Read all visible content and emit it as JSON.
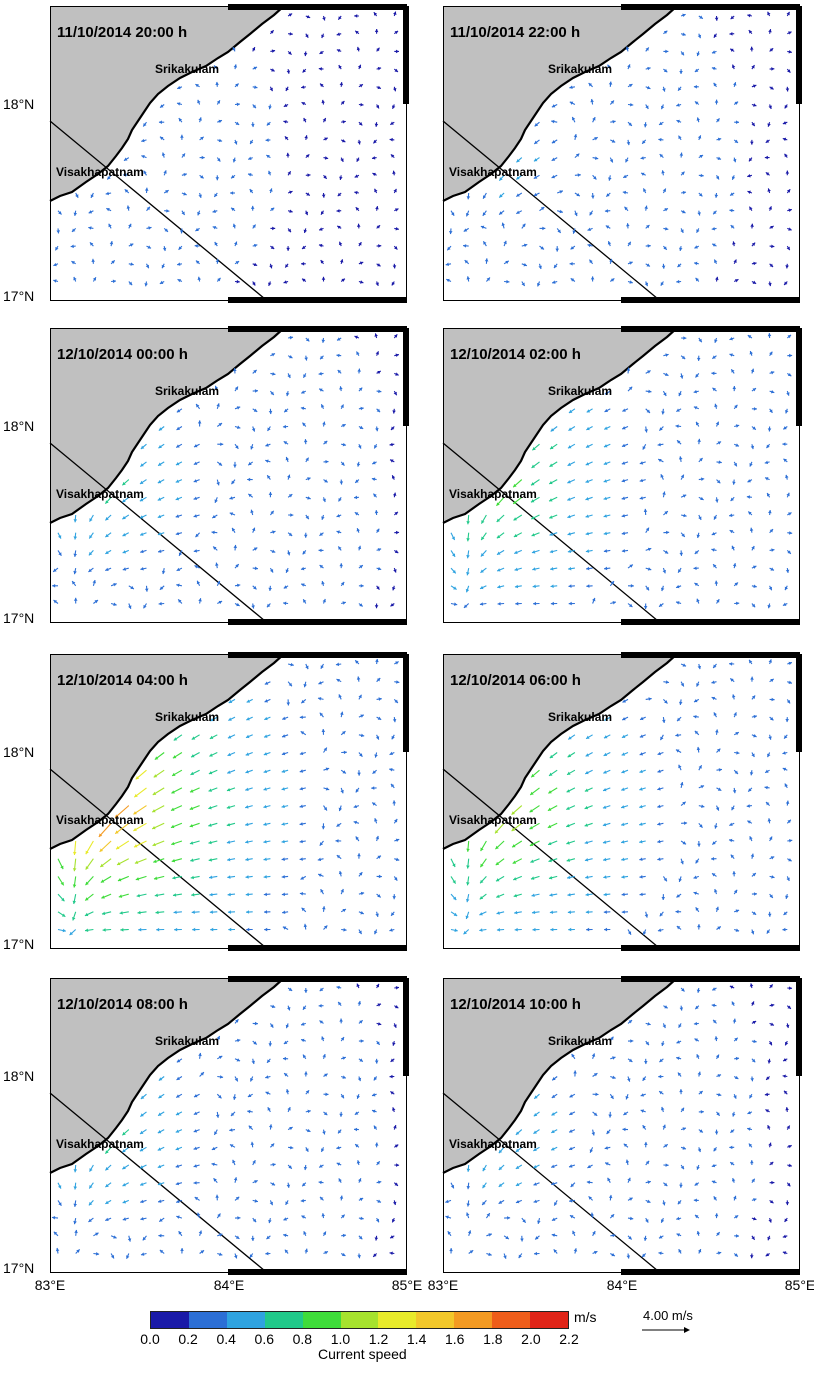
{
  "panels": [
    {
      "title": "11/10/2014 20:00 h",
      "time_index": 0
    },
    {
      "title": "11/10/2014 22:00 h",
      "time_index": 1
    },
    {
      "title": "12/10/2014 00:00 h",
      "time_index": 2
    },
    {
      "title": "12/10/2014 02:00 h",
      "time_index": 3
    },
    {
      "title": "12/10/2014 04:00 h",
      "time_index": 4
    },
    {
      "title": "12/10/2014 06:00 h",
      "time_index": 5
    },
    {
      "title": "12/10/2014 08:00 h",
      "time_index": 6
    },
    {
      "title": "12/10/2014 10:00 h",
      "time_index": 7
    }
  ],
  "places": {
    "north": "Srikakulam",
    "south": "Visakhapatnam"
  },
  "axes": {
    "lat_labels": [
      "18°N",
      "17°N"
    ],
    "lon_labels": [
      "83°E",
      "84°E",
      "85°E"
    ],
    "lon_range": [
      83,
      85
    ],
    "lat_range": [
      17,
      18.6
    ]
  },
  "colorbar": {
    "label": "Current speed",
    "units": "m/s",
    "ticks": [
      "0.0",
      "0.2",
      "0.4",
      "0.6",
      "0.8",
      "1.0",
      "1.2",
      "1.4",
      "1.6",
      "1.8",
      "2.0",
      "2.2"
    ],
    "colors": [
      "#1a1aa8",
      "#2c6fd6",
      "#2fa3e0",
      "#21c98a",
      "#3fdc3a",
      "#a6e22e",
      "#e8ea2a",
      "#f2c72a",
      "#f39a22",
      "#ee5d1a",
      "#e02418"
    ],
    "range": [
      0,
      2.2
    ]
  },
  "reference_vector": {
    "label": "4.00 m/s",
    "speed": 4.0
  },
  "colors": {
    "land": "#c0c0c0",
    "coast": "#000000",
    "frame": "#000000"
  }
}
